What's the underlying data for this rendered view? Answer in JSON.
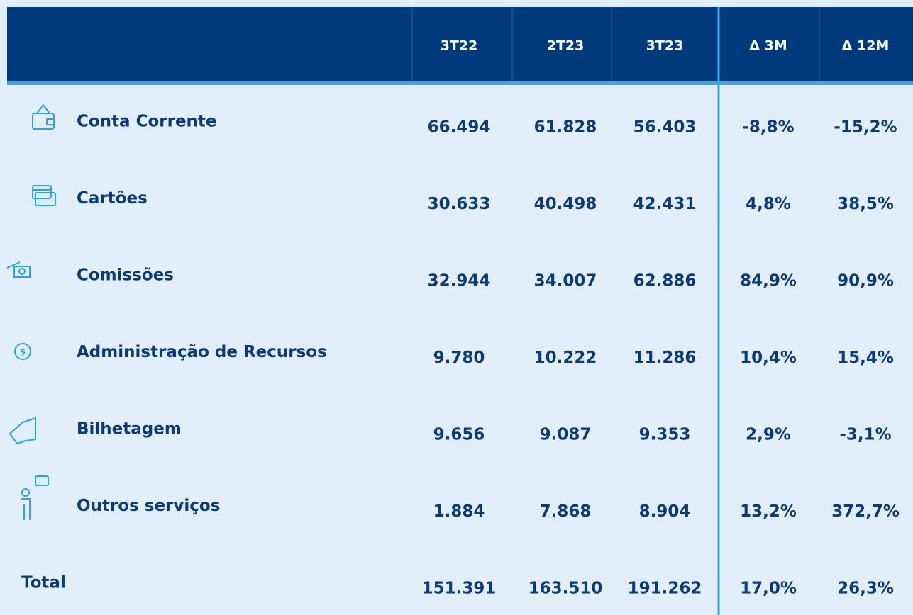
{
  "table": {
    "columns": [
      "3T22",
      "2T23",
      "3T23",
      "Δ 3M",
      "Δ 12M"
    ],
    "rows": [
      {
        "label": "Conta Corrente",
        "values": [
          "66.494",
          "61.828",
          "56.403",
          "-8,8%",
          "-15,2%"
        ]
      },
      {
        "label": "Cartões",
        "values": [
          "30.633",
          "40.498",
          "42.431",
          "4,8%",
          "38,5%"
        ]
      },
      {
        "label": "Comissões",
        "values": [
          "32.944",
          "34.007",
          "62.886",
          "84,9%",
          "90,9%"
        ]
      },
      {
        "label": "Administração de Recursos",
        "values": [
          "9.780",
          "10.222",
          "11.286",
          "10,4%",
          "15,4%"
        ]
      },
      {
        "label": "Bilhetagem",
        "values": [
          "9.656",
          "9.087",
          "9.353",
          "2,9%",
          "-3,1%"
        ]
      },
      {
        "label": "Outros serviços",
        "values": [
          "1.884",
          "7.868",
          "8.904",
          "13,2%",
          "372,7%"
        ]
      },
      {
        "label": "Total",
        "values": [
          "151.391",
          "163.510",
          "191.262",
          "17,0%",
          "26,3%"
        ]
      }
    ]
  }
}
